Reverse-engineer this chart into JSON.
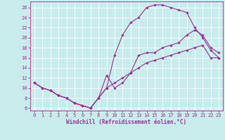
{
  "xlabel": "Windchill (Refroidissement éolien,°C)",
  "bg_color": "#c8ecec",
  "grid_color": "#ffffff",
  "line_color": "#993399",
  "xlim": [
    -0.5,
    23.5
  ],
  "ylim": [
    5.5,
    27.2
  ],
  "xticks": [
    0,
    1,
    2,
    3,
    4,
    5,
    6,
    7,
    8,
    9,
    10,
    11,
    12,
    13,
    14,
    15,
    16,
    17,
    18,
    19,
    20,
    21,
    22,
    23
  ],
  "yticks": [
    6,
    8,
    10,
    12,
    14,
    16,
    18,
    20,
    22,
    24,
    26
  ],
  "series1_x": [
    0,
    1,
    2,
    3,
    4,
    5,
    6,
    7,
    8,
    9,
    10,
    11,
    12,
    13,
    14,
    15,
    16,
    17,
    18,
    19,
    20,
    21,
    22,
    23
  ],
  "series1_y": [
    11,
    10,
    9.5,
    8.5,
    8,
    7,
    6.5,
    6,
    8,
    12.5,
    10,
    11,
    13,
    16.5,
    17,
    17,
    18,
    18.5,
    19,
    20.5,
    21.5,
    20.5,
    18,
    17
  ],
  "series2_x": [
    0,
    1,
    2,
    3,
    4,
    5,
    6,
    7,
    8,
    9,
    10,
    11,
    12,
    13,
    14,
    15,
    16,
    17,
    18,
    19,
    20,
    21,
    22,
    23
  ],
  "series2_y": [
    11,
    10,
    9.5,
    8.5,
    8,
    7,
    6.5,
    6,
    8,
    10,
    16.5,
    20.5,
    23,
    24,
    26,
    26.5,
    26.5,
    26,
    25.5,
    25,
    22,
    20,
    17.5,
    16
  ],
  "series3_x": [
    0,
    1,
    2,
    3,
    4,
    5,
    6,
    7,
    8,
    9,
    10,
    11,
    12,
    13,
    14,
    15,
    16,
    17,
    18,
    19,
    20,
    21,
    22,
    23
  ],
  "series3_y": [
    11,
    10,
    9.5,
    8.5,
    8,
    7,
    6.5,
    6,
    8,
    10,
    11,
    12,
    13,
    14,
    15,
    15.5,
    16,
    16.5,
    17,
    17.5,
    18,
    18.5,
    16,
    16
  ],
  "xlabel_fontsize": 5.5,
  "tick_fontsize": 5.0,
  "marker_size": 1.8,
  "line_width": 0.8
}
